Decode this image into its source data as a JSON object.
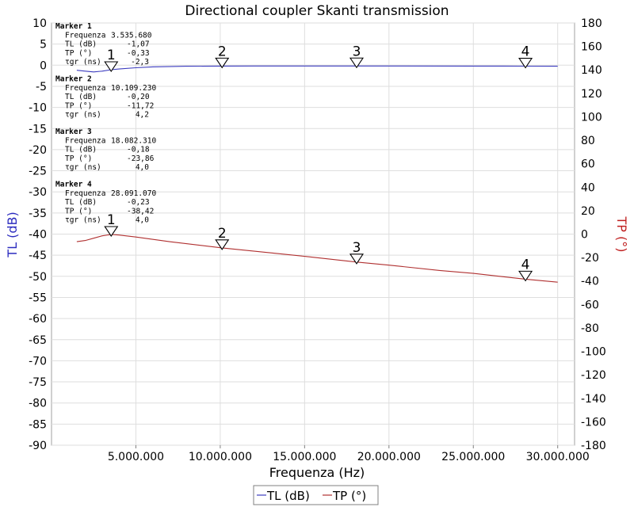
{
  "chart_data": {
    "type": "line",
    "title": "Directional coupler Skanti transmission",
    "xlabel": "Frequenza (Hz)",
    "ylabel_left": "TL (dB)",
    "ylabel_right": "TP (°)",
    "xlim": [
      0,
      31000000
    ],
    "ylim_left": [
      -90,
      10
    ],
    "ylim_right": [
      -180,
      180
    ],
    "x_ticks": [
      5000000,
      10000000,
      15000000,
      20000000,
      25000000,
      30000000
    ],
    "x_tick_labels": [
      "5.000.000",
      "10.000.000",
      "15.000.000",
      "20.000.000",
      "25.000.000",
      "30.000.000"
    ],
    "y_left_ticks": [
      10,
      5,
      0,
      -5,
      -10,
      -15,
      -20,
      -25,
      -30,
      -35,
      -40,
      -45,
      -50,
      -55,
      -60,
      -65,
      -70,
      -75,
      -80,
      -85,
      -90
    ],
    "y_left_tick_labels": [
      "10",
      "5",
      "0",
      "-5",
      "-10",
      "-15",
      "-20",
      "-25",
      "-30",
      "-35",
      "-40",
      "-45",
      "-50",
      "-55",
      "-60",
      "-65",
      "-70",
      "-75",
      "-80",
      "-85",
      "-90"
    ],
    "y_right_ticks": [
      180,
      160,
      140,
      120,
      100,
      80,
      60,
      40,
      20,
      0,
      -20,
      -40,
      -60,
      -80,
      -100,
      -120,
      -140,
      -160,
      -180
    ],
    "y_right_tick_labels": [
      "180",
      "160",
      "140",
      "120",
      "100",
      "80",
      "60",
      "40",
      "20",
      "0",
      "-20",
      "-40",
      "-60",
      "-80",
      "-100",
      "-120",
      "-140",
      "-160",
      "-180"
    ],
    "grid": true,
    "legend_position": "bottom-center",
    "series": [
      {
        "name": "TL (dB)",
        "axis": "left",
        "color": "#3b3bbf",
        "x": [
          1500000,
          2000000,
          2500000,
          3000000,
          3535680,
          4000000,
          5000000,
          6000000,
          8000000,
          10109230,
          12000000,
          15000000,
          18082310,
          20000000,
          25000000,
          28091070,
          30000000
        ],
        "y": [
          -1.2,
          -1.4,
          -1.6,
          -1.4,
          -1.07,
          -0.9,
          -0.6,
          -0.4,
          -0.25,
          -0.2,
          -0.19,
          -0.19,
          -0.18,
          -0.19,
          -0.21,
          -0.23,
          -0.24
        ]
      },
      {
        "name": "TP (°)",
        "axis": "right",
        "color": "#b03030",
        "x": [
          1500000,
          2000000,
          2500000,
          3000000,
          3535680,
          4000000,
          5000000,
          7000000,
          10109230,
          13000000,
          15000000,
          18082310,
          20000000,
          23000000,
          25000000,
          28091070,
          30000000
        ],
        "y": [
          -6.5,
          -5.5,
          -3.5,
          -1.5,
          -0.33,
          -0.8,
          -2.5,
          -6.5,
          -11.72,
          -16,
          -19,
          -23.86,
          -26.5,
          -31,
          -33.5,
          -38.42,
          -41
        ]
      }
    ],
    "markers": [
      {
        "label": "1",
        "x": 3535680,
        "tl": -1.07,
        "tp": -0.33
      },
      {
        "label": "2",
        "x": 10109230,
        "tl": -0.2,
        "tp": -11.72
      },
      {
        "label": "3",
        "x": 18082310,
        "tl": -0.18,
        "tp": -23.86
      },
      {
        "label": "4",
        "x": 28091070,
        "tl": -0.23,
        "tp": -38.42
      }
    ],
    "marker_table": [
      {
        "head": "Marker 1",
        "freq_label": "Frequenza",
        "freq": "3.535.680",
        "tl_label": "TL (dB)",
        "tl": "-1,07",
        "tp_label": "TP (°)",
        "tp": "-0,33",
        "tgr_label": "τgr (ns)",
        "tgr": "-2,3"
      },
      {
        "head": "Marker 2",
        "freq_label": "Frequenza",
        "freq": "10.109.230",
        "tl_label": "TL (dB)",
        "tl": "-0,20",
        "tp_label": "TP (°)",
        "tp": "-11,72",
        "tgr_label": "τgr (ns)",
        "tgr": "4,2"
      },
      {
        "head": "Marker 3",
        "freq_label": "Frequenza",
        "freq": "18.082.310",
        "tl_label": "TL (dB)",
        "tl": "-0,18",
        "tp_label": "TP (°)",
        "tp": "-23,86",
        "tgr_label": "τgr (ns)",
        "tgr": "4,0"
      },
      {
        "head": "Marker 4",
        "freq_label": "Frequenza",
        "freq": "28.091.070",
        "tl_label": "TL (dB)",
        "tl": "-0,23",
        "tp_label": "TP (°)",
        "tp": "-38,42",
        "tgr_label": "τgr (ns)",
        "tgr": "4,0"
      }
    ],
    "legend": [
      "TL (dB)",
      "TP (°)"
    ]
  }
}
